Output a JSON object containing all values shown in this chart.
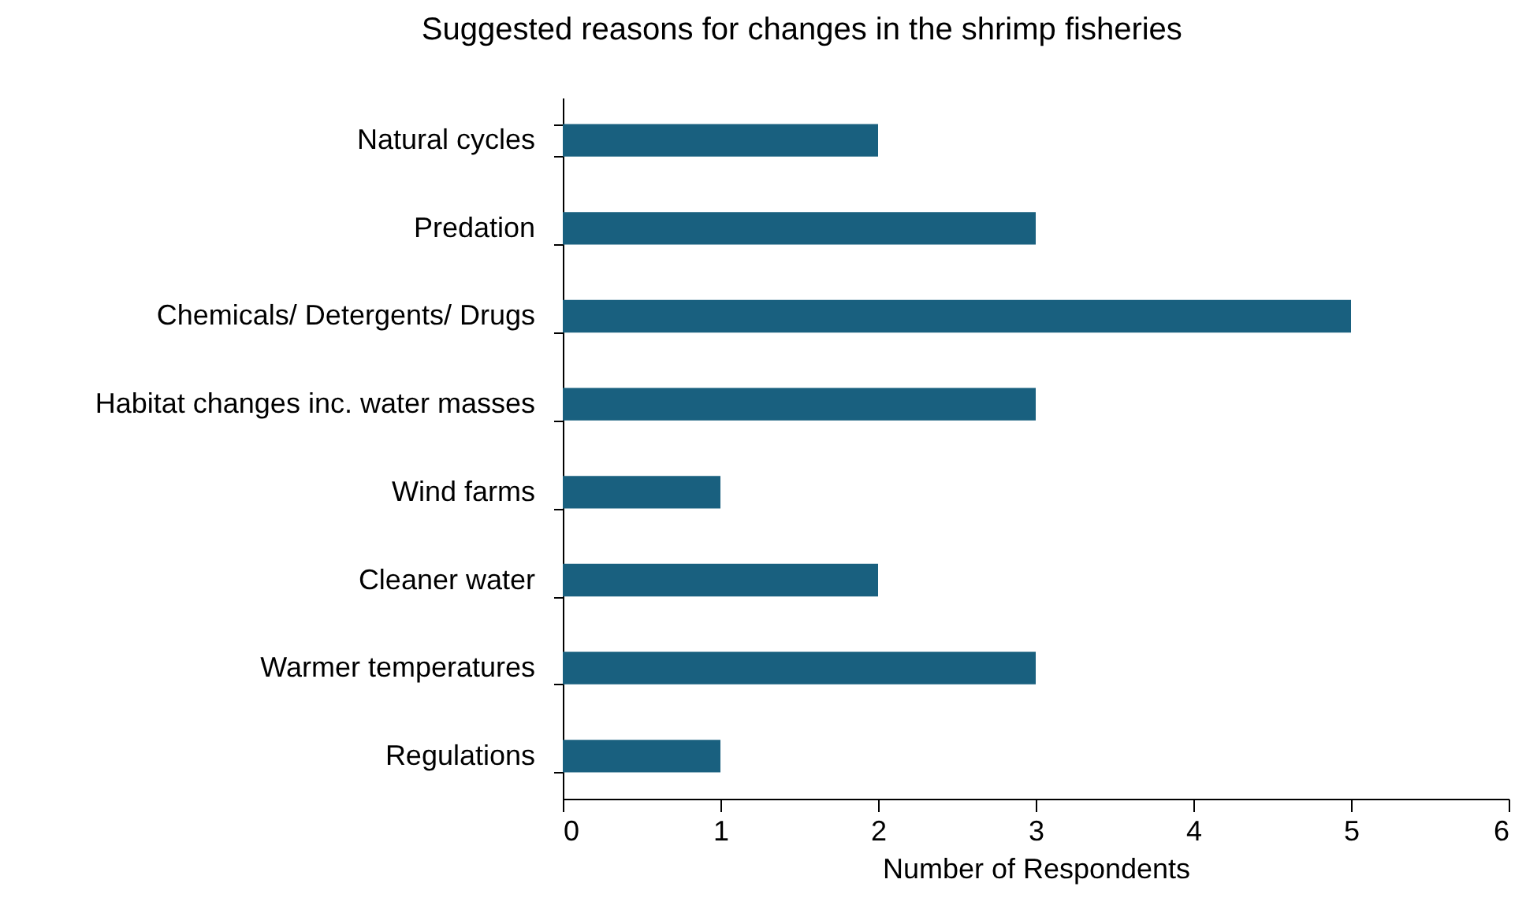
{
  "chart_data": {
    "type": "bar",
    "orientation": "horizontal",
    "title": "Suggested reasons for changes in the shrimp fisheries",
    "xlabel": "Number of Respondents",
    "categories": [
      "Natural cycles",
      "Predation",
      "Chemicals/ Detergents/ Drugs",
      "Habitat changes inc. water masses",
      "Wind farms",
      "Cleaner water",
      "Warmer temperatures",
      "Regulations"
    ],
    "values": [
      2,
      3,
      5,
      3,
      1,
      2,
      3,
      1
    ],
    "color": "#19607f",
    "xlim": [
      0,
      6
    ],
    "xticks": [
      0,
      1,
      2,
      3,
      4,
      5,
      6
    ],
    "grid": false
  }
}
